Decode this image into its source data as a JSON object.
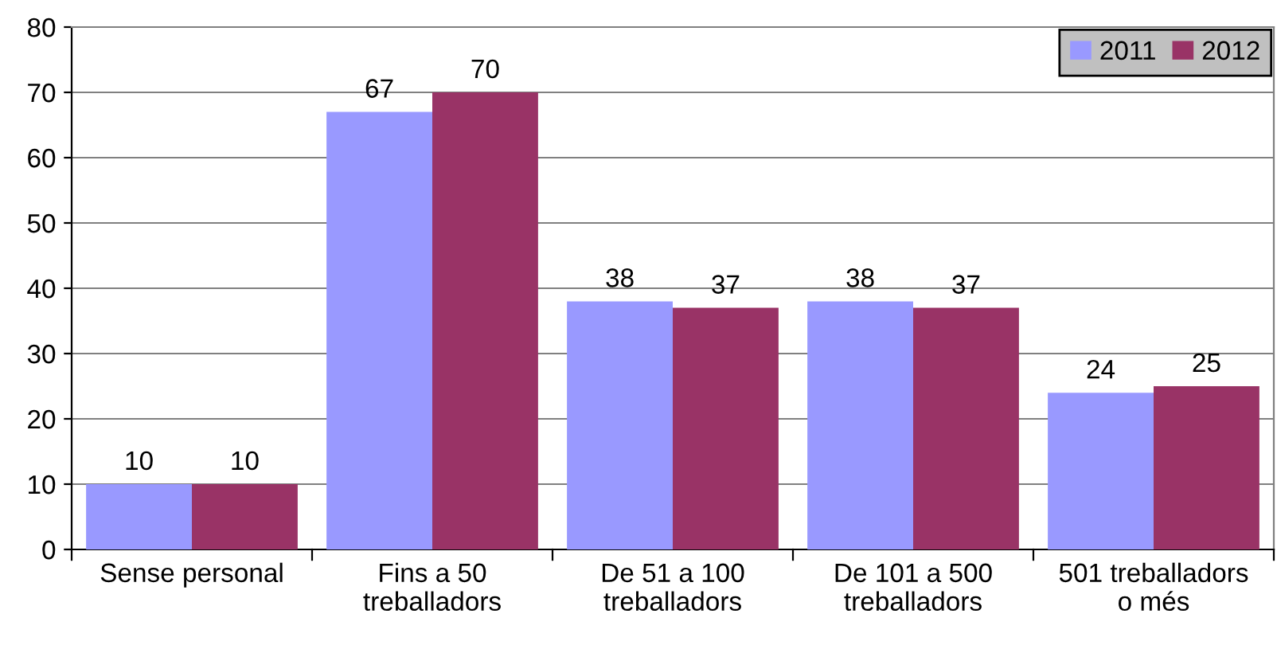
{
  "chart_data": {
    "type": "bar",
    "categories": [
      "Sense personal",
      "Fins a 50\ntreballadors",
      "De 51 a 100\ntreballadors",
      "De 101 a 500\ntreballadors",
      "501 treballadors\no més"
    ],
    "series": [
      {
        "name": "2011",
        "color": "#9999ff",
        "values": [
          10,
          67,
          38,
          38,
          24
        ]
      },
      {
        "name": "2012",
        "color": "#993366",
        "values": [
          10,
          70,
          37,
          37,
          25
        ]
      }
    ],
    "ylim": [
      0,
      80
    ],
    "yticks": [
      0,
      10,
      20,
      30,
      40,
      50,
      60,
      70,
      80
    ],
    "grid": "y",
    "legend": "top right",
    "data_labels": true
  }
}
